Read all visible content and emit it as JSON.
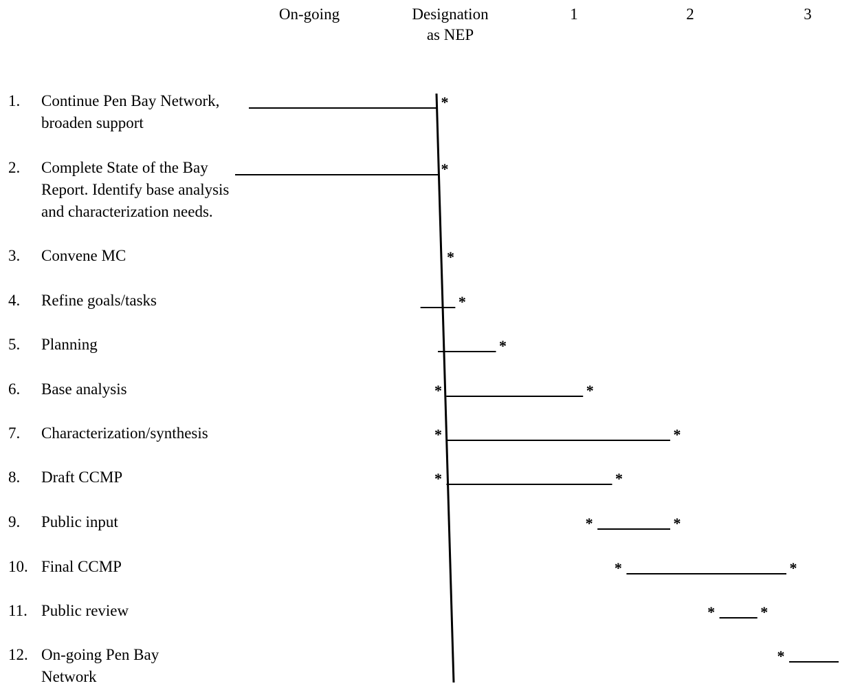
{
  "chart_data": {
    "type": "gantt",
    "columns": [
      "On-going",
      "Designation as NEP",
      "1",
      "2",
      "3"
    ],
    "header": {
      "ongoing": "On-going",
      "designation_line1": "Designation",
      "designation_line2": "as NEP",
      "year1": "1",
      "year2": "2",
      "year3": "3"
    },
    "tasks": [
      {
        "num": "1.",
        "lines": [
          "Continue Pen Bay Network,",
          "broaden support"
        ],
        "start": -1.0,
        "end": 0.0,
        "start_marker": false,
        "end_marker": true
      },
      {
        "num": "2.",
        "lines": [
          "Complete State of the Bay",
          "Report.  Identify base analysis",
          "and characterization needs."
        ],
        "start": -1.0,
        "end": 0.0,
        "start_marker": false,
        "end_marker": true
      },
      {
        "num": "3.",
        "lines": [
          "Convene MC"
        ],
        "start": 0.05,
        "end": 0.05,
        "start_marker": false,
        "end_marker": true
      },
      {
        "num": "4.",
        "lines": [
          "Refine goals/tasks"
        ],
        "start": -0.15,
        "end": 0.15,
        "start_marker": false,
        "end_marker": true
      },
      {
        "num": "5.",
        "lines": [
          "Planning"
        ],
        "start": 0.0,
        "end": 0.5,
        "start_marker": false,
        "end_marker": true
      },
      {
        "num": "6.",
        "lines": [
          "Base analysis"
        ],
        "start": 0.05,
        "end": 1.25,
        "start_marker": true,
        "end_marker": true
      },
      {
        "num": "7.",
        "lines": [
          "Characterization/synthesis"
        ],
        "start": 0.05,
        "end": 2.0,
        "start_marker": true,
        "end_marker": true
      },
      {
        "num": "8.",
        "lines": [
          "Draft CCMP"
        ],
        "start": 0.05,
        "end": 1.5,
        "start_marker": true,
        "end_marker": true
      },
      {
        "num": "9.",
        "lines": [
          "Public input"
        ],
        "start": 1.35,
        "end": 2.0,
        "start_marker": true,
        "end_marker": true
      },
      {
        "num": "10.",
        "lines": [
          "Final CCMP"
        ],
        "start": 1.6,
        "end": 3.0,
        "start_marker": true,
        "end_marker": true
      },
      {
        "num": "11.",
        "lines": [
          "Public review"
        ],
        "start": 2.4,
        "end": 2.75,
        "start_marker": true,
        "end_marker": true
      },
      {
        "num": "12.",
        "lines": [
          "On-going Pen Bay",
          "Network"
        ],
        "start": 3.0,
        "end": 3.45,
        "start_marker": true,
        "end_marker": false
      }
    ],
    "marker_symbol": "*"
  }
}
